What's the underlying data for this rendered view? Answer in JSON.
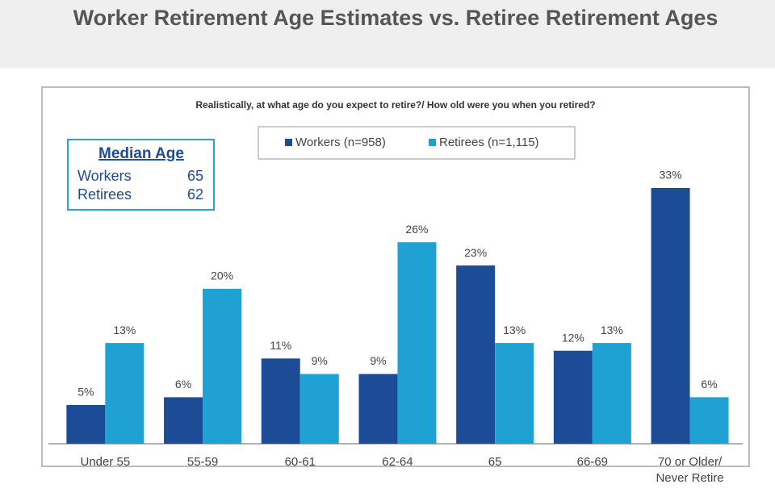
{
  "chart_data": {
    "type": "bar",
    "title": "Worker Retirement Age Estimates vs. Retiree Retirement Ages",
    "subtitle": "Realistically, at what age do you expect to retire?/ How old were you when you retired?",
    "categories": [
      "Under 55",
      "55-59",
      "60-61",
      "62-64",
      "65",
      "66-69",
      "70 or Older/\nNever Retire"
    ],
    "series": [
      {
        "name": "Workers (n=958)",
        "color": "#1d4c96",
        "values": [
          5,
          6,
          11,
          9,
          23,
          12,
          33
        ],
        "value_labels": [
          "5%",
          "6%",
          "11%",
          "9%",
          "23%",
          "12%",
          "33%"
        ]
      },
      {
        "name": "Retirees (n=1,115)",
        "color": "#1fa1d4",
        "values": [
          13,
          20,
          9,
          26,
          13,
          13,
          6
        ],
        "value_labels": [
          "13%",
          "20%",
          "9%",
          "26%",
          "13%",
          "13%",
          "6%"
        ]
      }
    ],
    "median_box": {
      "title": "Median Age",
      "rows": [
        [
          "Workers",
          65
        ],
        [
          "Retirees",
          62
        ]
      ]
    }
  }
}
